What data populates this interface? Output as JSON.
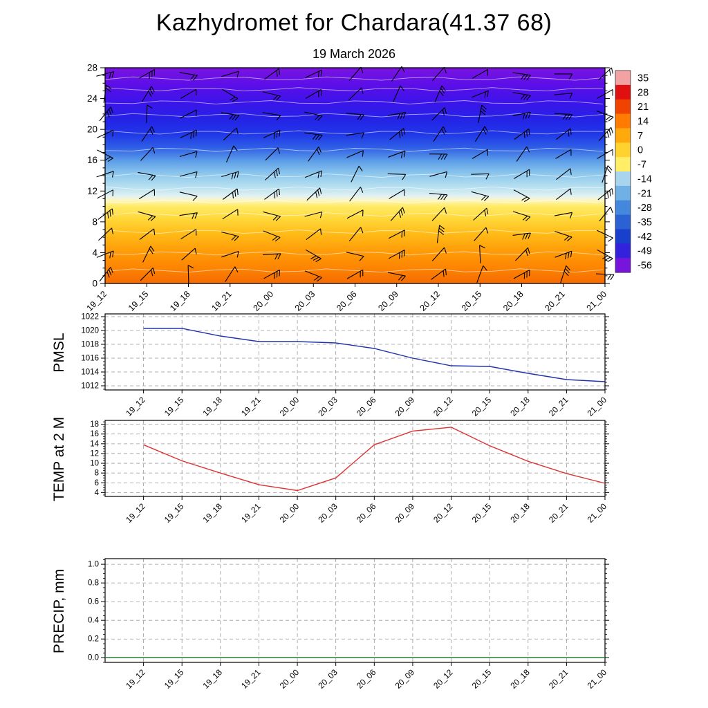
{
  "title": "Kazhydromet for Chardara(41.37 68)",
  "subtitle": "19 March 2026",
  "chart_data": [
    {
      "type": "heatmap",
      "name": "temperature-height-time-cross-section",
      "categories": [
        "19_12",
        "19_15",
        "19_18",
        "19_21",
        "20_00",
        "20_03",
        "20_06",
        "20_09",
        "20_12",
        "20_15",
        "20_18",
        "20_21",
        "21_00"
      ],
      "ylim": [
        0,
        28
      ],
      "yticks": [
        0,
        4,
        8,
        12,
        16,
        20,
        24,
        28
      ],
      "ytick_labels": [
        "0",
        "4",
        "8",
        "12",
        "16",
        "20",
        "24",
        "28"
      ],
      "overlay": "wind-barbs",
      "contour_color": "#ffffff",
      "fill_gradient": [
        {
          "pos": 0.0,
          "color": "#7a14e0"
        },
        {
          "pos": 0.08,
          "color": "#5c0ee8"
        },
        {
          "pos": 0.16,
          "color": "#3c14ea"
        },
        {
          "pos": 0.24,
          "color": "#2423e6"
        },
        {
          "pos": 0.31,
          "color": "#2038e8"
        },
        {
          "pos": 0.37,
          "color": "#2f5fe6"
        },
        {
          "pos": 0.43,
          "color": "#5b9ce8"
        },
        {
          "pos": 0.49,
          "color": "#8cc6ec"
        },
        {
          "pos": 0.55,
          "color": "#b4dff0"
        },
        {
          "pos": 0.595,
          "color": "#e2f1f2"
        },
        {
          "pos": 0.615,
          "color": "#fef6c0"
        },
        {
          "pos": 0.64,
          "color": "#ffec6a"
        },
        {
          "pos": 0.7,
          "color": "#ffd83a"
        },
        {
          "pos": 0.77,
          "color": "#ffbb18"
        },
        {
          "pos": 0.85,
          "color": "#ff9c08"
        },
        {
          "pos": 0.93,
          "color": "#fd8402"
        },
        {
          "pos": 1.0,
          "color": "#f66a00"
        }
      ],
      "colorbar": {
        "ticks": [
          "35",
          "28",
          "21",
          "14",
          "7",
          "0",
          "-7",
          "-14",
          "-21",
          "-28",
          "-35",
          "-42",
          "-49",
          "-56"
        ],
        "colors": [
          "#f2a2a2",
          "#e01010",
          "#f04300",
          "#ff7c00",
          "#ffa90a",
          "#ffd22e",
          "#ffee66",
          "#a8d4ee",
          "#6fb0e6",
          "#4488dd",
          "#2a62d4",
          "#1840cc",
          "#3322dd",
          "#7715dd"
        ]
      }
    },
    {
      "type": "line",
      "ylabel": "PMSL",
      "categories": [
        "19_12",
        "19_15",
        "19_18",
        "19_21",
        "20_00",
        "20_03",
        "20_06",
        "20_09",
        "20_12",
        "20_15",
        "20_18",
        "20_21",
        "21_00"
      ],
      "values": [
        1020.3,
        1020.3,
        1019.2,
        1018.4,
        1018.4,
        1018.2,
        1017.4,
        1016.0,
        1014.9,
        1014.8,
        1013.8,
        1012.9,
        1012.6
      ],
      "ylim": [
        1011.4,
        1022.4
      ],
      "yticks": [
        1012,
        1014,
        1016,
        1018,
        1020,
        1022
      ],
      "ytick_labels": [
        "1012",
        "1014",
        "1016",
        "1018",
        "1020",
        "1022"
      ],
      "line_color": "#2233aa",
      "grid": true
    },
    {
      "type": "line",
      "ylabel": "TEMP at 2 M",
      "categories": [
        "19_12",
        "19_15",
        "19_18",
        "19_21",
        "20_00",
        "20_03",
        "20_06",
        "20_09",
        "20_12",
        "20_15",
        "20_18",
        "20_21",
        "21_00"
      ],
      "values": [
        13.8,
        10.5,
        8.0,
        5.6,
        4.4,
        7.0,
        13.8,
        16.6,
        17.4,
        13.6,
        10.4,
        7.9,
        5.9
      ],
      "ylim": [
        3.2,
        18.8
      ],
      "yticks": [
        4,
        6,
        8,
        10,
        12,
        14,
        16,
        18
      ],
      "ytick_labels": [
        "4",
        "6",
        "8",
        "10",
        "12",
        "14",
        "16",
        "18"
      ],
      "line_color": "#dd3333",
      "grid": true
    },
    {
      "type": "line",
      "ylabel": "PRECIP, mm",
      "categories": [
        "19_12",
        "19_15",
        "19_18",
        "19_21",
        "20_00",
        "20_03",
        "20_06",
        "20_09",
        "20_12",
        "20_15",
        "20_18",
        "20_21",
        "21_00"
      ],
      "values": [
        0,
        0,
        0,
        0,
        0,
        0,
        0,
        0,
        0,
        0,
        0,
        0,
        0
      ],
      "ylim": [
        -0.05,
        1.06
      ],
      "yticks": [
        0,
        0.2,
        0.4,
        0.6,
        0.8,
        1.0
      ],
      "ytick_labels": [
        "0.0",
        "0.2",
        "0.4",
        "0.6",
        "0.8",
        "1.0"
      ],
      "line_color": "#1b7a2b",
      "grid": true
    }
  ]
}
